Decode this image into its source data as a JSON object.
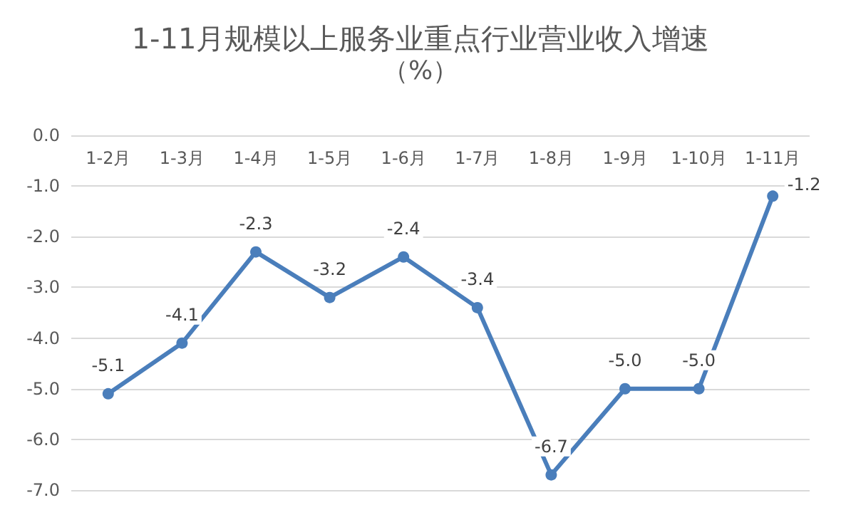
{
  "chart_data": {
    "type": "line",
    "title": "1-11月规模以上服务业重点行业营业收入增速",
    "subtitle": "（%）",
    "categories": [
      "1-2月",
      "1-3月",
      "1-4月",
      "1-5月",
      "1-6月",
      "1-7月",
      "1-8月",
      "1-9月",
      "1-10月",
      "1-11月"
    ],
    "series": [
      {
        "color": "#4a7ebb",
        "values": [
          -5.1,
          -4.1,
          -2.3,
          -3.2,
          -2.4,
          -3.4,
          -6.7,
          -5.0,
          -5.0,
          -1.2
        ],
        "value_labels": [
          "-5.1",
          "-4.1",
          "-2.3",
          "-3.2",
          "-2.4",
          "-3.4",
          "-6.7",
          "-5.0",
          "-5.0",
          "-1.2"
        ]
      }
    ],
    "ylim": [
      -7,
      0
    ],
    "yticks": [
      {
        "value": -7,
        "label": "-7.0"
      },
      {
        "value": -6,
        "label": "-6.0"
      },
      {
        "value": -5,
        "label": "-5.0"
      },
      {
        "value": -4,
        "label": "-4.0"
      },
      {
        "value": -3,
        "label": "-3.0"
      },
      {
        "value": -2,
        "label": "-2.0"
      },
      {
        "value": -1,
        "label": "-1.0"
      },
      {
        "value": 0,
        "label": "0.0"
      }
    ],
    "grid": "y",
    "marker": "circle",
    "line_style": "solid"
  }
}
